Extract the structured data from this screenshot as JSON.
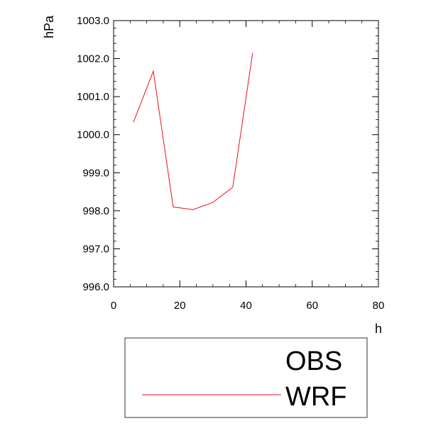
{
  "chart_data": {
    "type": "line",
    "xlabel": "h",
    "ylabel": "hPa",
    "xlim": [
      0,
      80
    ],
    "ylim": [
      996.0,
      1003.0
    ],
    "x_ticks": [
      0,
      20,
      40,
      60,
      80
    ],
    "x_tick_labels": [
      "0",
      "20",
      "40",
      "60",
      "80"
    ],
    "y_ticks": [
      996,
      997,
      998,
      999,
      1000,
      1001,
      1002,
      1003
    ],
    "y_tick_labels": [
      "996.0",
      "997.0",
      "998.0",
      "999.0",
      "1000.0",
      "1001.0",
      "1002.0",
      "1003.0"
    ],
    "grid": false,
    "legend_position": "bottom",
    "series": [
      {
        "name": "OBS",
        "color": "#000000",
        "x": [],
        "y": []
      },
      {
        "name": "WRF",
        "color": "#e8101e",
        "x": [
          6,
          12,
          18,
          24,
          30,
          36,
          42
        ],
        "y": [
          1000.33,
          1001.67,
          998.1,
          998.03,
          998.22,
          998.62,
          1002.15
        ]
      }
    ]
  }
}
